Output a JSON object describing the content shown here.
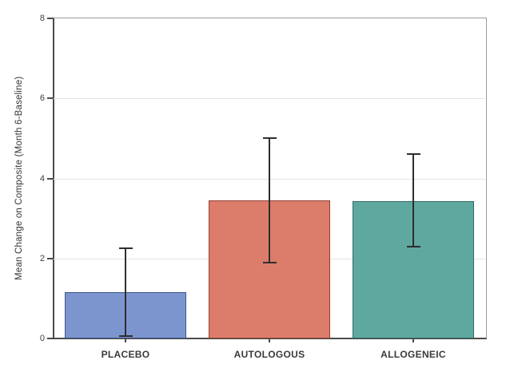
{
  "chart_data": {
    "type": "bar",
    "title": "",
    "xlabel": "",
    "ylabel": "Mean Change on Composite (Month 6-Baseline)",
    "categories": [
      "PLACEBO",
      "AUTOLOGOUS",
      "ALLOGENEIC"
    ],
    "values": [
      1.15,
      3.45,
      3.43
    ],
    "error_low": [
      0.05,
      1.9,
      2.3
    ],
    "error_high": [
      2.25,
      5.0,
      4.6
    ],
    "bar_colors": [
      "#7C95CE",
      "#DC7C6B",
      "#5FA89F"
    ],
    "bar_edge_colors": [
      "#41548A",
      "#934134",
      "#2F6D65"
    ],
    "error_bar_color": "#2E2E2E",
    "ylim": [
      0,
      8
    ],
    "yticks": [
      0,
      2,
      4,
      6,
      8
    ],
    "gridlines": [
      2,
      4,
      6
    ],
    "grid": true,
    "legend": "none"
  }
}
